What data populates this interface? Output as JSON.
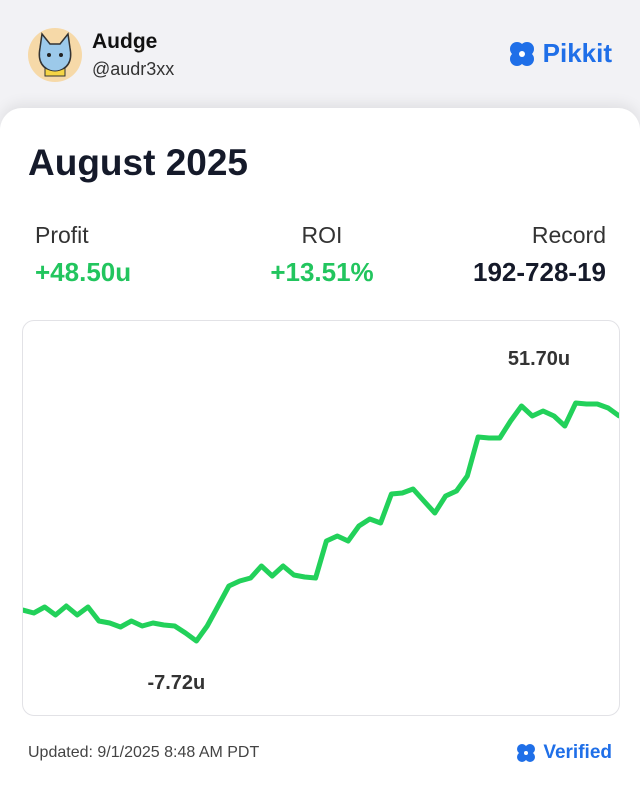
{
  "header": {
    "name": "Audge",
    "handle": "@audr3xx"
  },
  "brand": {
    "name": "Pikkit"
  },
  "card": {
    "title": "August 2025",
    "stats": [
      {
        "label": "Profit",
        "value": "+48.50u"
      },
      {
        "label": "ROI",
        "value": "+13.51%"
      },
      {
        "label": "Record",
        "value": "192-728-19"
      }
    ]
  },
  "chart_data": {
    "type": "line",
    "color": "#22d15a",
    "values": [
      0,
      -0.74,
      0.76,
      -1.24,
      1.01,
      -1.24,
      0.76,
      -2.73,
      -3.23,
      -4.23,
      -2.73,
      -3.98,
      -3.23,
      -3.73,
      -3.98,
      -5.73,
      -7.72,
      -3.98,
      1.01,
      6.0,
      7.25,
      8.0,
      11.0,
      8.5,
      11.0,
      8.75,
      8.25,
      8.0,
      17.24,
      18.49,
      17.24,
      20.99,
      22.73,
      21.74,
      28.98,
      29.23,
      30.23,
      27.23,
      24.23,
      28.48,
      29.73,
      33.47,
      43.21,
      42.96,
      42.96,
      47.21,
      50.95,
      48.45,
      49.7,
      48.45,
      45.96,
      51.7,
      51.45,
      51.45,
      50.45,
      48.5
    ],
    "annotations": [
      {
        "value": 51.7,
        "label": "51.70u"
      },
      {
        "value": -7.72,
        "label": "-7.72u"
      }
    ]
  },
  "footer": {
    "updated": "Updated: 9/1/2025 8:48 AM PDT",
    "verified": "Verified"
  }
}
